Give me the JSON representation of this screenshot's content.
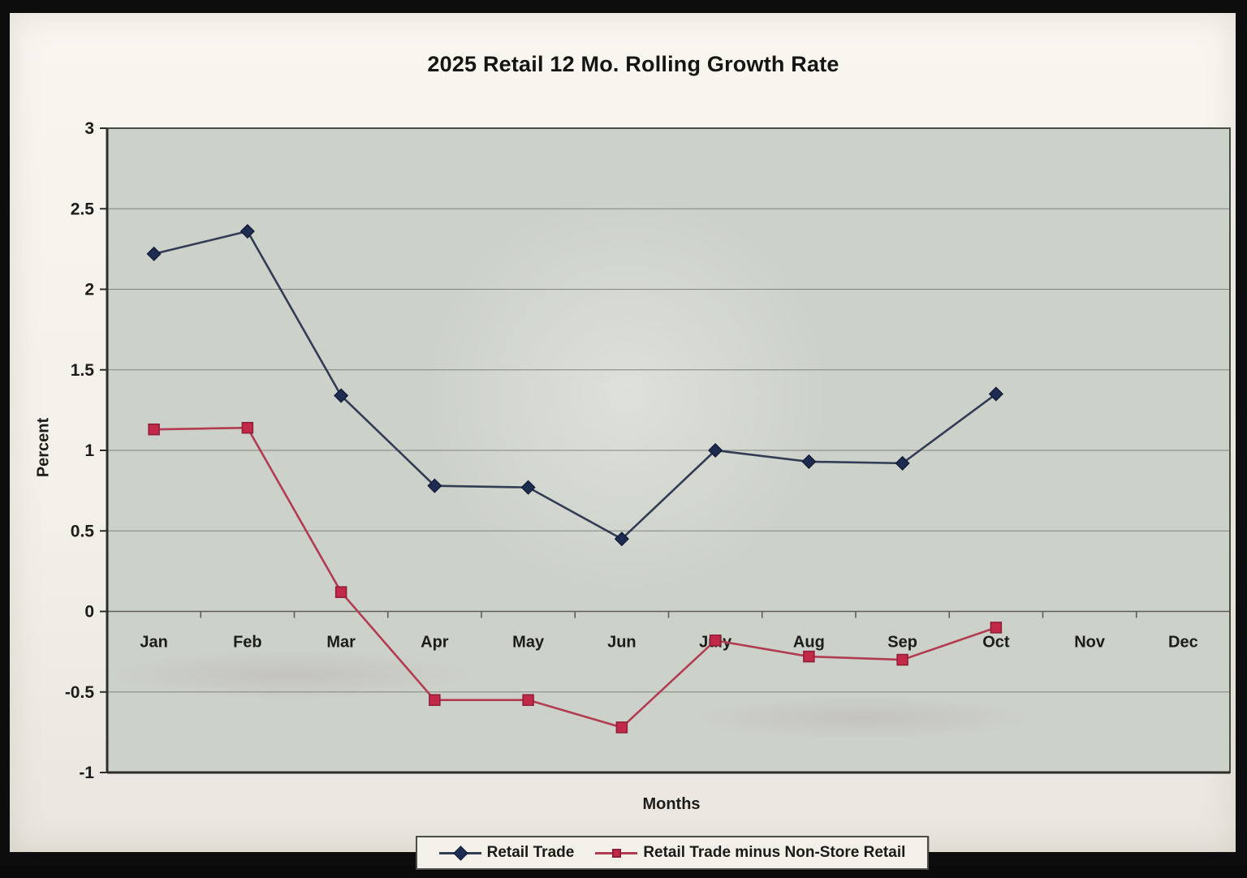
{
  "chart_data": {
    "type": "line",
    "title": "2025 Retail 12 Mo. Rolling Growth Rate",
    "xlabel": "Months",
    "ylabel": "Percent",
    "ylim": [
      -1,
      3
    ],
    "yticks": [
      3,
      2.5,
      2,
      1.5,
      1,
      0.5,
      0,
      -0.5,
      -1
    ],
    "categories": [
      "Jan",
      "Feb",
      "Mar",
      "Apr",
      "May",
      "Jun",
      "July",
      "Aug",
      "Sep",
      "Oct",
      "Nov",
      "Dec"
    ],
    "grid": true,
    "legend_position": "bottom",
    "series": [
      {
        "name": "Retail Trade",
        "marker": "diamond",
        "line_color": "#333c55",
        "marker_fill": "#1f2c52",
        "marker_stroke": "#141d38",
        "values": [
          2.22,
          2.36,
          1.34,
          0.78,
          0.77,
          0.45,
          1.0,
          0.93,
          0.92,
          1.35,
          null,
          null
        ]
      },
      {
        "name": "Retail Trade minus Non-Store Retail",
        "marker": "square",
        "line_color": "#b23c52",
        "marker_fill": "#c22848",
        "marker_stroke": "#8e1e38",
        "values": [
          1.13,
          1.14,
          0.12,
          -0.55,
          -0.55,
          -0.72,
          -0.18,
          -0.28,
          -0.3,
          -0.1,
          null,
          null
        ]
      }
    ]
  },
  "colors": {
    "plot_bg": "#ccd1c9",
    "gridline": "#82857c",
    "zero_line": "#5d5f57",
    "plot_border": "#4a4c45",
    "axis": "#2e2f2a",
    "tick_text": "#1c1c1a"
  }
}
